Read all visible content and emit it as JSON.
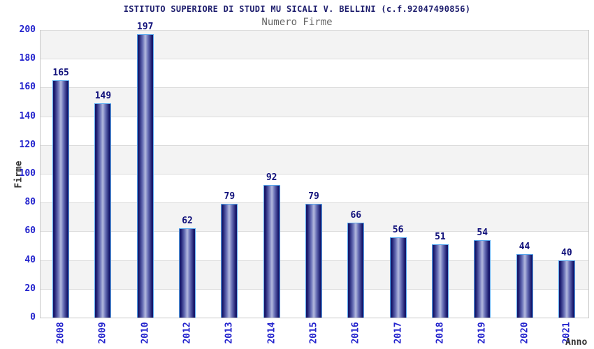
{
  "chart_data": {
    "type": "bar",
    "title": "ISTITUTO SUPERIORE DI STUDI MU SICALI V. BELLINI (c.f.92047490856)",
    "subtitle": "Numero Firme",
    "xlabel": "Anno",
    "ylabel": "Firme",
    "categories": [
      "2008",
      "2009",
      "2010",
      "2012",
      "2013",
      "2014",
      "2015",
      "2016",
      "2017",
      "2018",
      "2019",
      "2020",
      "2021"
    ],
    "values": [
      165,
      149,
      197,
      62,
      79,
      92,
      79,
      66,
      56,
      51,
      54,
      44,
      40
    ],
    "ylim": [
      0,
      200
    ],
    "ytick_step": 20,
    "grid": "horizontal-bands-alternating",
    "legend": "none"
  },
  "colors": {
    "title": "#1c1c6c",
    "subtitle": "#666666",
    "tick": "#2323cd",
    "value_label": "#10107a",
    "axis_title": "#333333",
    "band_gray": "#f3f3f3",
    "band_white": "#ffffff",
    "gridline": "#dcdcdc",
    "axis_border": "#c9c9c9",
    "bar_border": "#58a8ee",
    "bar_dark": "#17176b",
    "bar_mid": "#6a71b8",
    "bar_light": "#b4bade"
  }
}
